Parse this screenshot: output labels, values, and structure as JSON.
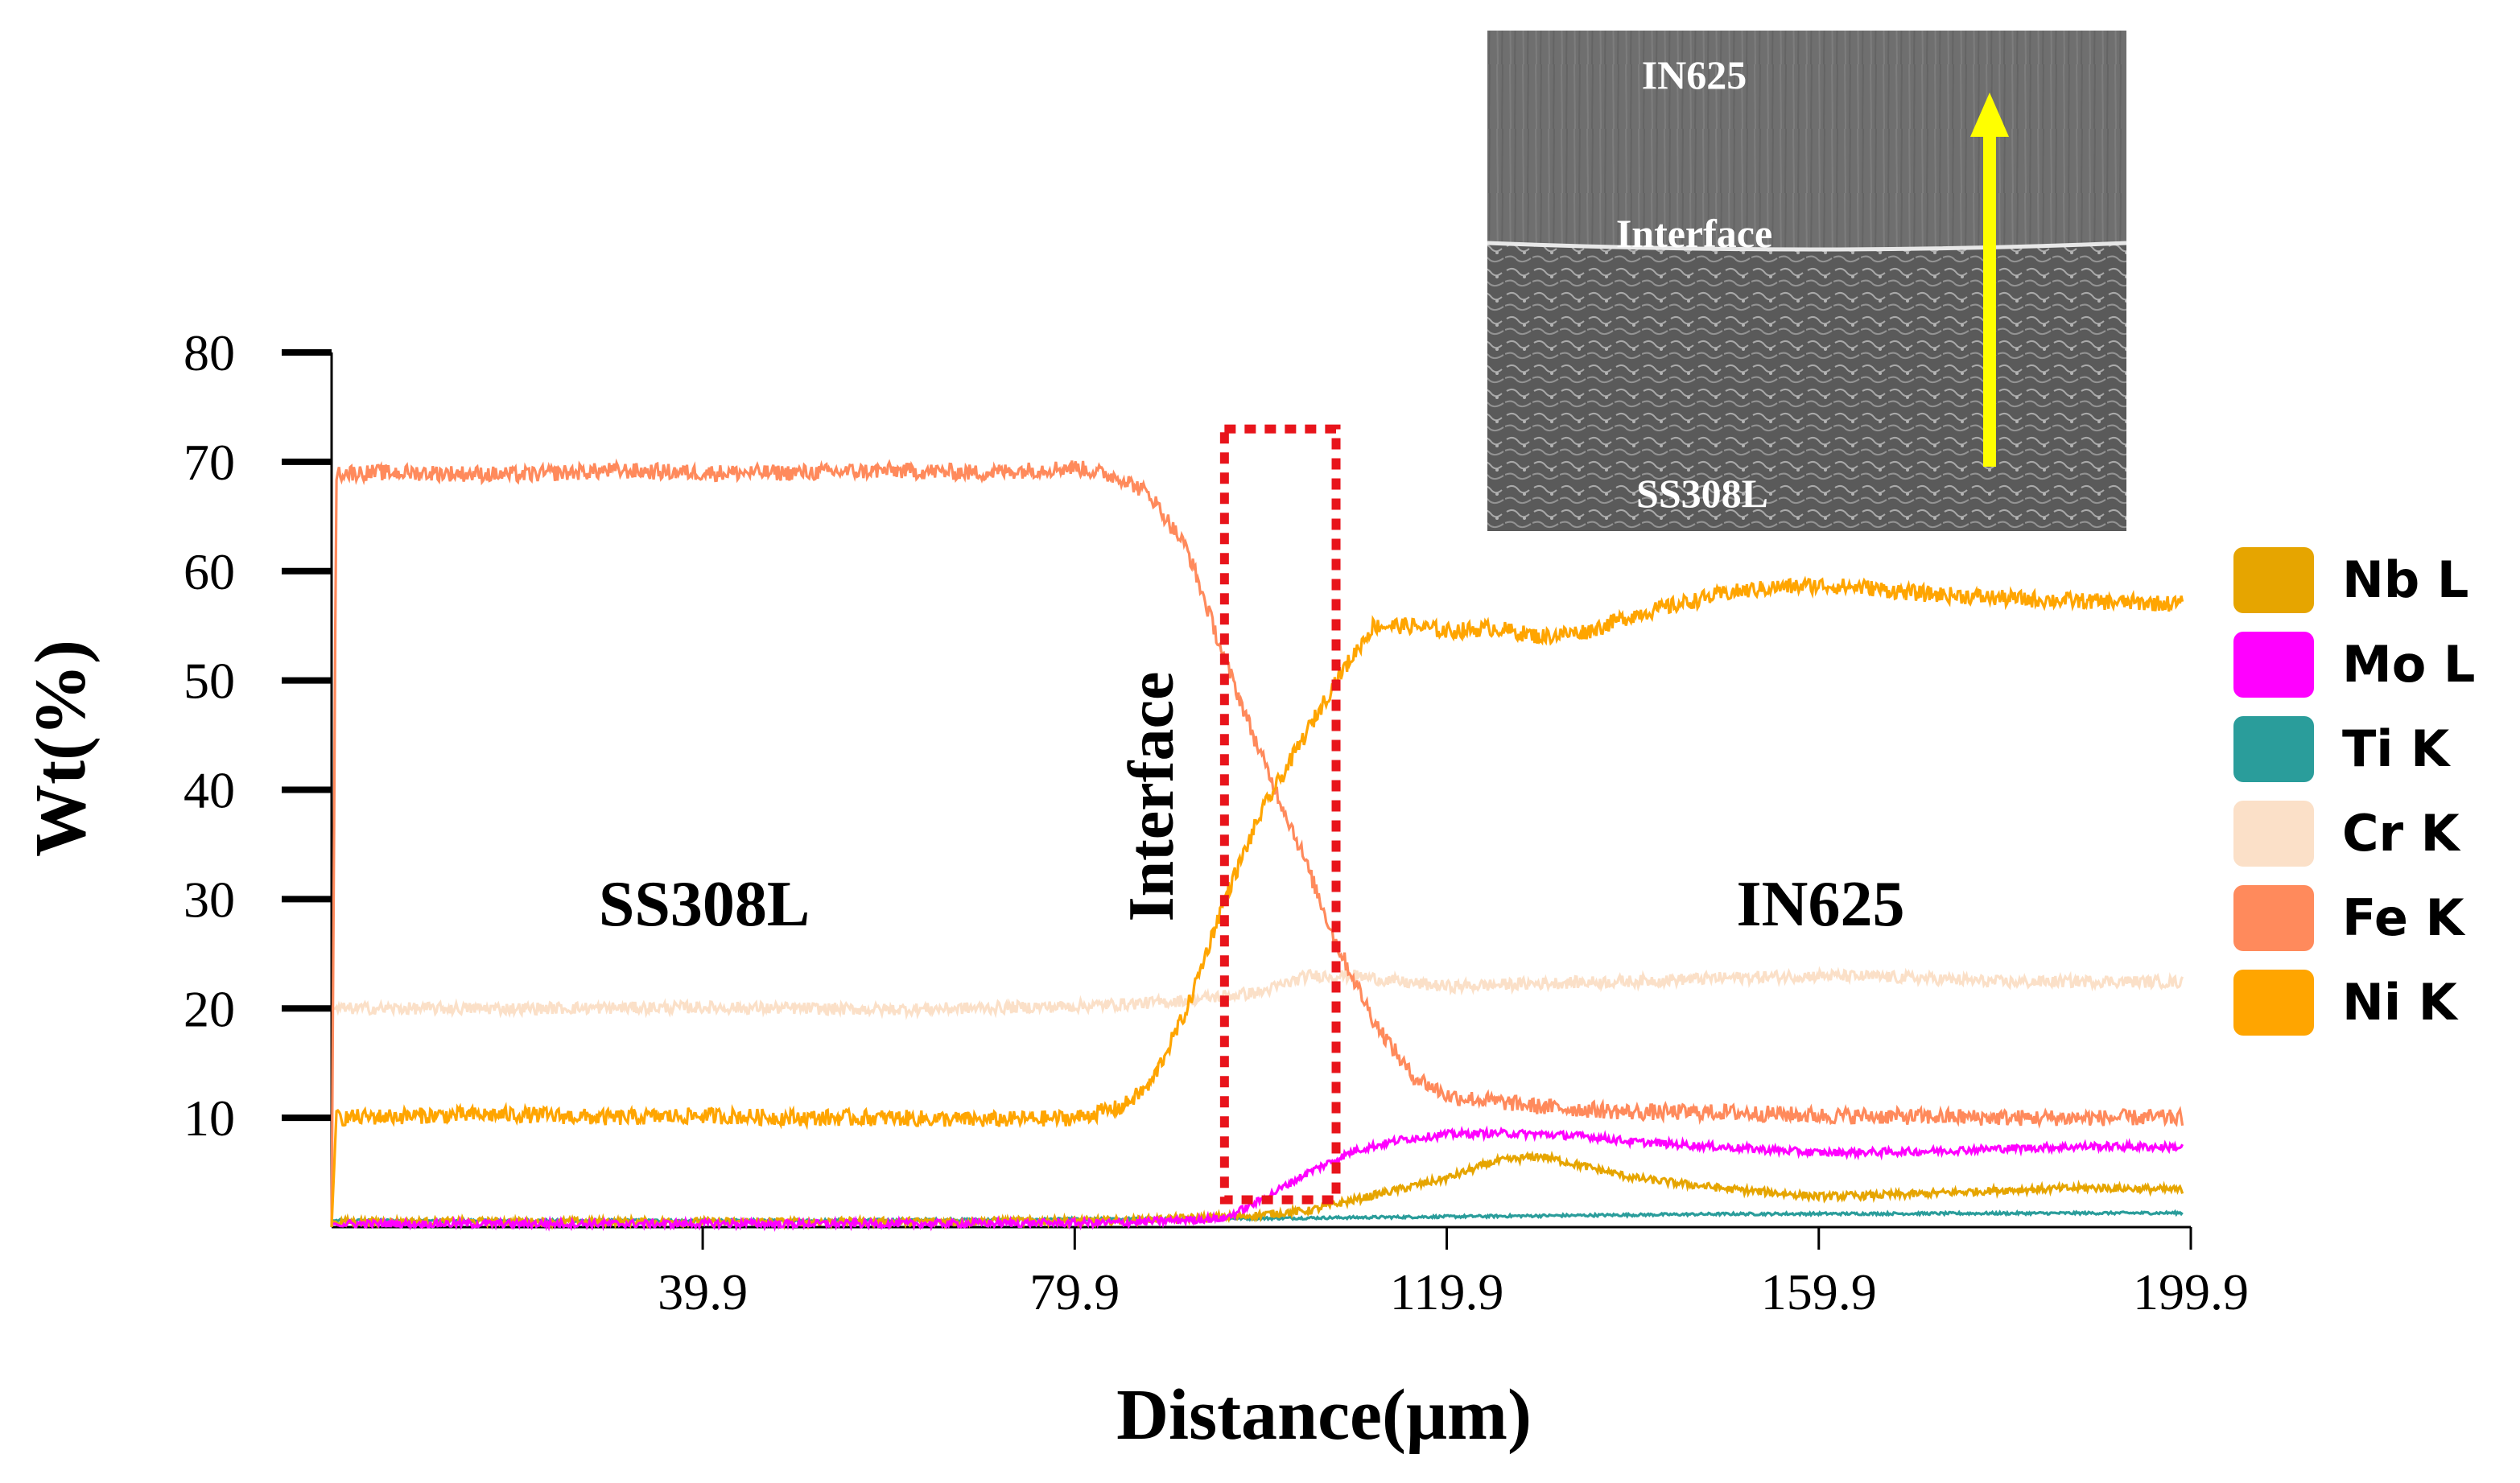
{
  "chart_data": {
    "type": "line",
    "title": "",
    "xlabel": "Distance(μm)",
    "ylabel": "Wt(%)",
    "xlim": [
      0,
      199.9
    ],
    "ylim": [
      0,
      80
    ],
    "x_ticks": [
      39.9,
      79.9,
      119.9,
      159.9,
      199.9
    ],
    "x_tick_labels": [
      "39.9",
      "79.9",
      "119.9",
      "159.9",
      "199.9"
    ],
    "y_ticks": [
      10,
      20,
      30,
      40,
      50,
      60,
      70,
      80
    ],
    "y_tick_labels": [
      "10",
      "20",
      "30",
      "40",
      "50",
      "60",
      "70",
      "80"
    ],
    "grid": false,
    "legend_position": "right",
    "series": [
      {
        "name": "Nb L",
        "color": "#E6A500",
        "x": [
          0,
          20,
          40,
          60,
          85,
          98,
          105,
          110,
          115,
          120,
          125,
          130,
          135,
          140,
          150,
          160,
          170,
          180,
          190,
          199
        ],
        "values": [
          0.5,
          0.5,
          0.5,
          0.5,
          0.6,
          1.0,
          1.5,
          2.5,
          3.5,
          4.5,
          6.0,
          6.5,
          5.5,
          4.5,
          3.5,
          2.8,
          3.0,
          3.4,
          3.6,
          3.4
        ]
      },
      {
        "name": "Mo L",
        "color": "#FF00FF",
        "x": [
          0,
          20,
          40,
          60,
          85,
          96,
          100,
          105,
          110,
          115,
          120,
          125,
          130,
          135,
          140,
          150,
          160,
          170,
          180,
          190,
          199
        ],
        "values": [
          0.3,
          0.3,
          0.3,
          0.3,
          0.4,
          0.8,
          2.5,
          5.0,
          7.0,
          8.0,
          8.5,
          8.6,
          8.5,
          8.3,
          7.8,
          7.3,
          6.8,
          6.9,
          7.2,
          7.4,
          7.3
        ]
      },
      {
        "name": "Ti K",
        "color": "#2A9D9B",
        "x": [
          0,
          50,
          100,
          150,
          199
        ],
        "values": [
          0.6,
          0.6,
          0.8,
          1.2,
          1.3
        ]
      },
      {
        "name": "Cr K",
        "color": "#FBE0C8",
        "x": [
          0,
          20,
          40,
          60,
          80,
          90,
          100,
          105,
          110,
          115,
          120,
          130,
          140,
          150,
          160,
          170,
          180,
          190,
          199
        ],
        "values": [
          20.0,
          20.0,
          20.1,
          19.9,
          20.2,
          20.6,
          21.5,
          23.0,
          23.0,
          22.4,
          22.0,
          22.3,
          22.5,
          22.8,
          23.0,
          22.8,
          22.4,
          22.5,
          22.4
        ]
      },
      {
        "name": "Fe K",
        "color": "#FF8A5C",
        "x": [
          0,
          0.5,
          10,
          20,
          30,
          40,
          50,
          60,
          70,
          80,
          85,
          88,
          92,
          96,
          100,
          104,
          108,
          112,
          116,
          120,
          130,
          140,
          150,
          160,
          170,
          180,
          190,
          199
        ],
        "values": [
          0,
          69.0,
          69.0,
          68.8,
          69.2,
          69.0,
          69.0,
          69.2,
          69.0,
          69.5,
          68.5,
          67.0,
          62.0,
          52.0,
          43.0,
          35.0,
          26.0,
          19.0,
          14.0,
          12.0,
          11.0,
          10.5,
          10.5,
          10.2,
          10.1,
          10.0,
          10.0,
          10.0
        ]
      },
      {
        "name": "Ni K",
        "color": "#FFA500",
        "x": [
          0,
          0.5,
          10,
          20,
          30,
          40,
          50,
          60,
          70,
          80,
          85,
          88,
          92,
          96,
          100,
          104,
          108,
          112,
          116,
          120,
          125,
          130,
          135,
          140,
          145,
          150,
          155,
          160,
          165,
          170,
          180,
          190,
          199
        ],
        "values": [
          0,
          10.0,
          10.2,
          10.3,
          10.0,
          10.2,
          10.0,
          10.0,
          9.8,
          10.0,
          11.0,
          13.0,
          20.0,
          30.0,
          38.0,
          44.0,
          50.0,
          55.0,
          55.0,
          54.5,
          54.8,
          54.0,
          54.5,
          56.0,
          57.0,
          58.0,
          58.5,
          58.7,
          58.5,
          58.0,
          57.5,
          57.2,
          57.0
        ]
      }
    ],
    "annotations": {
      "left_region": "SS308L",
      "right_region": "IN625",
      "interface": "Interface",
      "interface_box_x": [
        96,
        108
      ],
      "interface_box_y": [
        2.5,
        73
      ]
    }
  },
  "inset": {
    "top_label": "IN625",
    "middle_label": "Interface",
    "bottom_label": "SS308L"
  }
}
